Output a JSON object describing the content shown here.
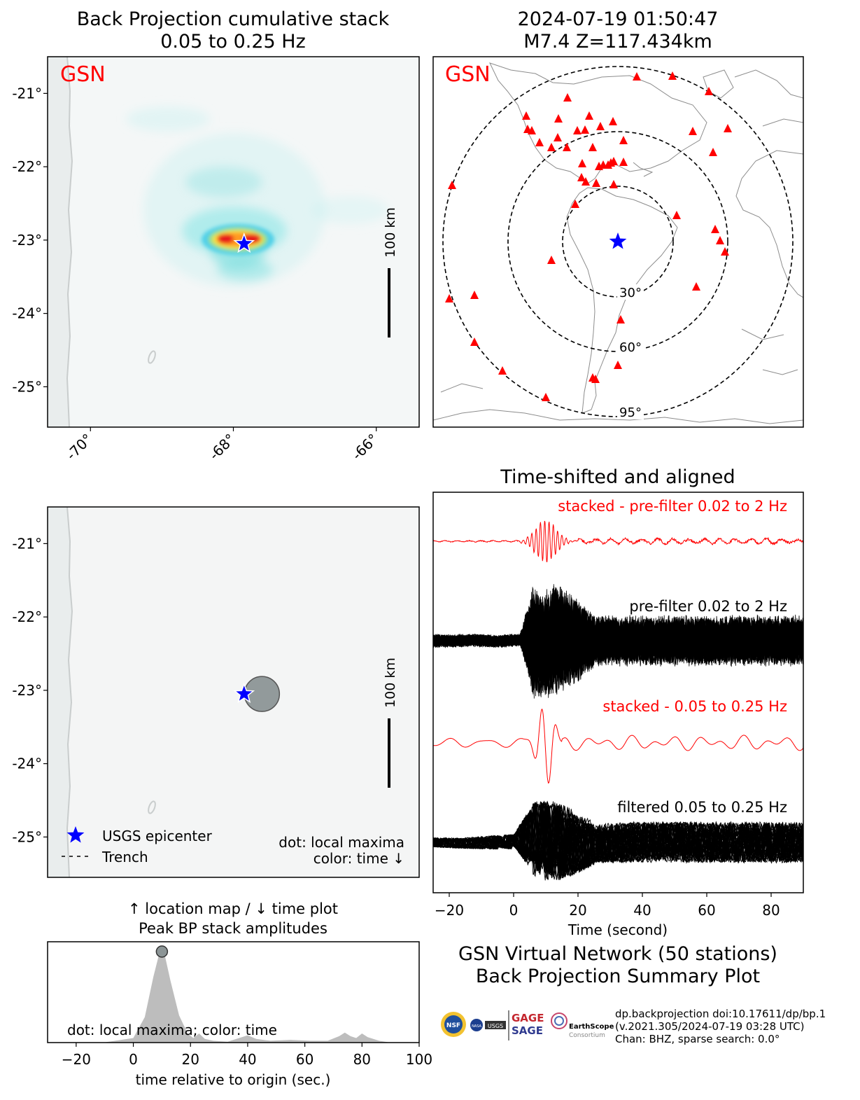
{
  "colors": {
    "red": "#ff0000",
    "blue": "#0000ff",
    "black": "#000000",
    "gray_fill": "#bdbdbd",
    "dot_fill": "#8c9596",
    "map_bg": "#f5f6f6",
    "coast": "#b4b4b4"
  },
  "panels": {
    "bp_stack": {
      "title_line1": "Back Projection cumulative stack",
      "title_line2": "0.05 to 0.25 Hz",
      "network": "GSN",
      "scale_label": "100 km",
      "lat_ticks": [
        "-21°",
        "-22°",
        "-23°",
        "-24°",
        "-25°"
      ],
      "lon_ticks": [
        "-70°",
        "-68°",
        "-66°"
      ]
    },
    "station_map": {
      "title_line1": "2024-07-19 01:50:47",
      "title_line2": "M7.4 Z=117.434km",
      "network": "GSN",
      "ring_labels": [
        "30°",
        "60°",
        "95°"
      ],
      "marker_icons": [
        "red-triangle-station-icon",
        "blue-star-epicenter-icon"
      ]
    },
    "local_maxima": {
      "scale_label": "100 km",
      "lat_ticks": [
        "-21°",
        "-22°",
        "-23°",
        "-24°",
        "-25°"
      ],
      "legend_epicenter": "USGS epicenter",
      "legend_trench": "Trench",
      "note_line1": "dot: local maxima",
      "note_line2": "color: time ↓"
    },
    "peak_amp": {
      "title_line1": "↑ location map / ↓ time plot",
      "title_line2": "Peak BP stack amplitudes",
      "note": "dot: local maxima; color: time",
      "xlabel": "time relative to origin (sec.)",
      "x_ticks": [
        "−20",
        "0",
        "20",
        "40",
        "60",
        "80",
        "100"
      ]
    },
    "traces": {
      "title": "Time-shifted and aligned",
      "label_stacked_pre": "stacked - pre-filter 0.02 to 2 Hz",
      "label_pre": "pre-filter 0.02 to 2 Hz",
      "label_stacked_filt": "stacked - 0.05 to 0.25 Hz",
      "label_filt": "filtered 0.05 to 0.25 Hz",
      "xlabel": "Time (second)",
      "x_ticks": [
        "−20",
        "0",
        "20",
        "40",
        "60",
        "80"
      ]
    }
  },
  "summary": {
    "title_line1": "GSN Virtual Network (50 stations)",
    "title_line2": "Back Projection Summary Plot",
    "meta_line1": "dp.backprojection doi:10.17611/dp/bp.1",
    "meta_line2": "(v.2021.305/2024-07-19 03:28 UTC)",
    "meta_line3": "Chan: BHZ, sparse search: 0.0°",
    "logo_gage": "GAGE",
    "logo_sage": "SAGE",
    "logo_es": "EarthScope",
    "logo_es_sub": "Consortium",
    "logo_usgs": "USGS",
    "logo_nasa": "NASA",
    "logo_nsf": "NSF"
  },
  "chart_data": [
    {
      "type": "heatmap",
      "title": "Back Projection cumulative stack\n0.05 to 0.25 Hz",
      "xlabel": "",
      "ylabel": "",
      "xlim": [
        -70.6,
        -65.4
      ],
      "ylim": [
        -25.55,
        -20.5
      ],
      "x_ticks": [
        -70,
        -68,
        -66
      ],
      "y_ticks": [
        -21,
        -22,
        -23,
        -24,
        -25
      ],
      "grid": false,
      "peak": {
        "lon": -67.8,
        "lat": -23.0
      },
      "epicenter": {
        "lon": -67.85,
        "lat": -23.05
      },
      "annotation": "GSN"
    },
    {
      "type": "scatter",
      "title": "2024-07-19 01:50:47\nM7.4 Z=117.434km",
      "epicenter_marker": "blue star",
      "distance_rings_deg": [
        30,
        60,
        95
      ],
      "station_count": 50,
      "annotation": "GSN"
    },
    {
      "type": "scatter",
      "xlim": [
        -70.6,
        -65.4
      ],
      "ylim": [
        -25.55,
        -20.5
      ],
      "y_ticks": [
        -21,
        -22,
        -23,
        -24,
        -25
      ],
      "local_maxima": [
        {
          "lon": -67.6,
          "lat": -23.05,
          "time_s": 10
        }
      ],
      "epicenter": {
        "lon": -67.85,
        "lat": -23.05
      },
      "legend": [
        "USGS epicenter",
        "Trench"
      ],
      "legend_position": "lower-left"
    },
    {
      "type": "area",
      "title": "↑ location map / ↓ time plot\nPeak BP stack amplitudes",
      "xlabel": "time relative to origin (sec.)",
      "ylabel": "",
      "xlim": [
        -30,
        100
      ],
      "x_ticks": [
        -20,
        0,
        20,
        40,
        60,
        80,
        100
      ],
      "x": [
        -30,
        -10,
        0,
        4,
        7,
        9,
        10,
        11,
        13,
        16,
        19,
        21,
        23,
        25,
        28,
        33,
        37,
        40,
        43,
        48,
        55,
        62,
        68,
        72,
        74,
        76,
        78,
        80,
        82,
        86,
        90,
        100
      ],
      "y": [
        0,
        0.003,
        0.05,
        0.28,
        0.72,
        0.97,
        1.0,
        0.96,
        0.68,
        0.3,
        0.1,
        0.05,
        0.1,
        0.04,
        0.02,
        0.01,
        0.05,
        0.08,
        0.04,
        0.02,
        0.03,
        0.02,
        0.02,
        0.07,
        0.11,
        0.07,
        0.05,
        0.1,
        0.06,
        0.02,
        0.0,
        0.0
      ],
      "local_maxima": [
        {
          "t": 10,
          "amp": 1.0
        }
      ]
    },
    {
      "type": "line",
      "title": "Time-shifted and aligned",
      "xlabel": "Time (second)",
      "xlim": [
        -25,
        90
      ],
      "x_ticks": [
        -20,
        0,
        20,
        40,
        60,
        80
      ],
      "series": [
        {
          "name": "stacked - pre-filter 0.02 to 2 Hz",
          "color": "#ff0000"
        },
        {
          "name": "pre-filter 0.02 to 2 Hz",
          "color": "#000000",
          "traces": 50
        },
        {
          "name": "stacked - 0.05 to 0.25 Hz",
          "color": "#ff0000"
        },
        {
          "name": "filtered 0.05 to 0.25 Hz",
          "color": "#000000",
          "traces": 50
        }
      ]
    }
  ]
}
